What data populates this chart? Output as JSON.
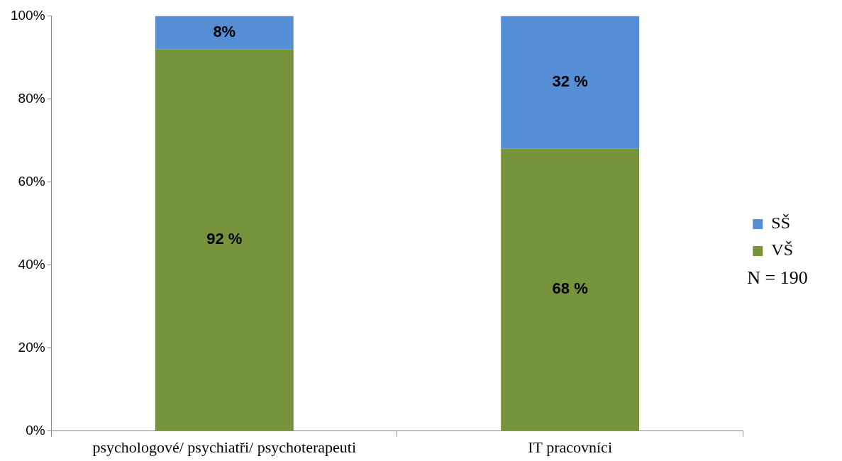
{
  "chart_data": {
    "type": "bar",
    "stacked": true,
    "categories": [
      "psychologové/ psychiatři/ psychoterapeuti",
      "IT pracovníci"
    ],
    "series": [
      {
        "name": "VŠ",
        "color": "#77933c",
        "values": [
          92,
          68
        ],
        "value_labels": [
          "92 %",
          "68 %"
        ]
      },
      {
        "name": "SŠ",
        "color": "#558ed5",
        "values": [
          8,
          32
        ],
        "value_labels": [
          "8%",
          "32 %"
        ]
      }
    ],
    "ylim": [
      0,
      100
    ],
    "yticks": [
      {
        "value": 0,
        "label": "0%"
      },
      {
        "value": 20,
        "label": "20%"
      },
      {
        "value": 40,
        "label": "40%"
      },
      {
        "value": 60,
        "label": "60%"
      },
      {
        "value": 80,
        "label": "80%"
      },
      {
        "value": 100,
        "label": "100%"
      }
    ],
    "legend": "right",
    "grid": false,
    "annotations": [
      "N = 190"
    ]
  }
}
